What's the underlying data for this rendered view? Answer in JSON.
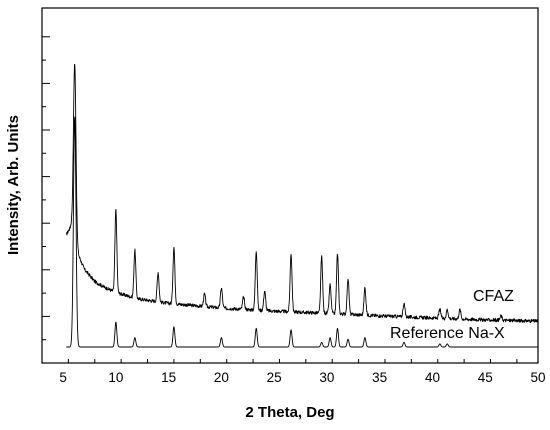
{
  "chart_data": {
    "type": "line",
    "title": "",
    "xlabel": "2 Theta, Deg",
    "ylabel": "Intensity, Arb. Units",
    "xlim": [
      3,
      50
    ],
    "ylim": [
      0,
      100
    ],
    "x_ticks": [
      5,
      10,
      15,
      20,
      25,
      30,
      35,
      40,
      45,
      50
    ],
    "grid": false,
    "y_tick_labels_shown": false,
    "series": [
      {
        "name": "CFAZ",
        "color": "#000000",
        "baseline": [
          [
            5.3,
            36
          ],
          [
            5.8,
            39
          ],
          [
            6.4,
            30
          ],
          [
            7,
            25
          ],
          [
            8,
            21
          ],
          [
            9,
            19
          ],
          [
            10,
            17.5
          ],
          [
            12,
            15.5
          ],
          [
            15,
            14
          ],
          [
            20,
            12.5
          ],
          [
            25,
            11.5
          ],
          [
            30,
            10.8
          ],
          [
            35,
            10
          ],
          [
            40,
            9.3
          ],
          [
            45,
            8.7
          ],
          [
            50,
            8.3
          ]
        ],
        "peaks": [
          [
            6.1,
            91
          ],
          [
            10.0,
            44
          ],
          [
            11.8,
            31
          ],
          [
            14.0,
            24
          ],
          [
            15.5,
            32
          ],
          [
            18.4,
            17
          ],
          [
            20.0,
            19
          ],
          [
            22.1,
            16
          ],
          [
            23.3,
            31
          ],
          [
            24.1,
            18
          ],
          [
            26.6,
            30
          ],
          [
            29.5,
            29
          ],
          [
            30.3,
            20
          ],
          [
            31.0,
            30
          ],
          [
            32.0,
            22
          ],
          [
            33.6,
            19
          ],
          [
            37.3,
            14
          ],
          [
            40.7,
            12
          ],
          [
            41.4,
            12
          ],
          [
            42.6,
            12
          ],
          [
            46.5,
            10
          ]
        ]
      },
      {
        "name": "Reference Na-X",
        "color": "#000000",
        "baseline": [
          [
            5.3,
            0
          ],
          [
            50,
            0
          ]
        ],
        "peaks": [
          [
            6.1,
            74
          ],
          [
            10.0,
            8
          ],
          [
            11.8,
            3
          ],
          [
            15.5,
            6.5
          ],
          [
            20.0,
            3
          ],
          [
            23.3,
            6
          ],
          [
            26.6,
            5.5
          ],
          [
            29.5,
            1.5
          ],
          [
            30.3,
            3
          ],
          [
            31.0,
            6
          ],
          [
            32.0,
            2.5
          ],
          [
            33.6,
            3
          ],
          [
            37.3,
            1.5
          ],
          [
            40.7,
            1
          ],
          [
            41.4,
            1
          ]
        ]
      }
    ]
  }
}
